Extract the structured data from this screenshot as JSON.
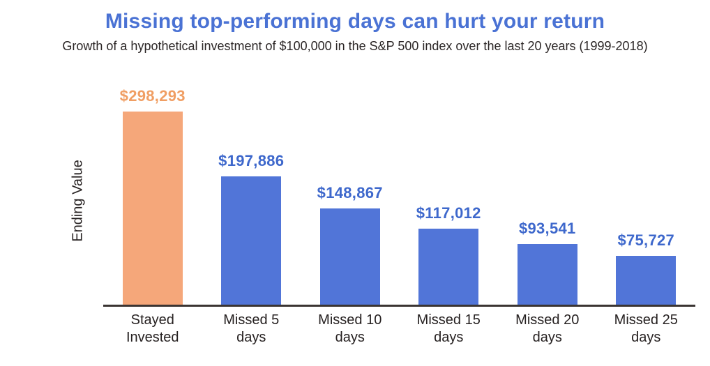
{
  "header": {
    "title": "Missing top-performing days can hurt your return",
    "subtitle": "Growth of a hypothetical investment of $100,000 in the S&P 500 index over the last 20 years (1999-2018)"
  },
  "chart_data": {
    "type": "bar",
    "title": "Missing top-performing days can hurt your return",
    "subtitle": "Growth of a hypothetical investment of $100,000 in the S&P 500 index over the last 20 years (1999-2018)",
    "xlabel": "",
    "ylabel": "Ending Value",
    "categories": [
      "Stayed Invested",
      "Missed 5 days",
      "Missed 10 days",
      "Missed 15 days",
      "Missed 20 days",
      "Missed 25 days"
    ],
    "values": [
      298293,
      197886,
      148867,
      117012,
      93541,
      75727
    ],
    "value_labels": [
      "$298,293",
      "$197,886",
      "$148,867",
      "$117,012",
      "$93,541",
      "$75,727"
    ],
    "tick_labels": [
      "Stayed\nInvested",
      "Missed 5\ndays",
      "Missed 10\ndays",
      "Missed 15\ndays",
      "Missed 20\ndays",
      "Missed 25\ndays"
    ],
    "bar_colors": [
      "#f5a77a",
      "#5175d8",
      "#5175d8",
      "#5175d8",
      "#5175d8",
      "#5175d8"
    ],
    "value_label_colors": [
      "#f09e63",
      "#3e68cc",
      "#3e68cc",
      "#3e68cc",
      "#3e68cc",
      "#3e68cc"
    ],
    "ylim": [
      0,
      298293
    ],
    "grid": false,
    "legend": "none",
    "colors": {
      "title": "#4a72d4",
      "subtitle_text": "#2b2626",
      "axis_line": "#3a3432",
      "highlight_bar": "#f5a77a",
      "default_bar": "#5175d8"
    }
  }
}
